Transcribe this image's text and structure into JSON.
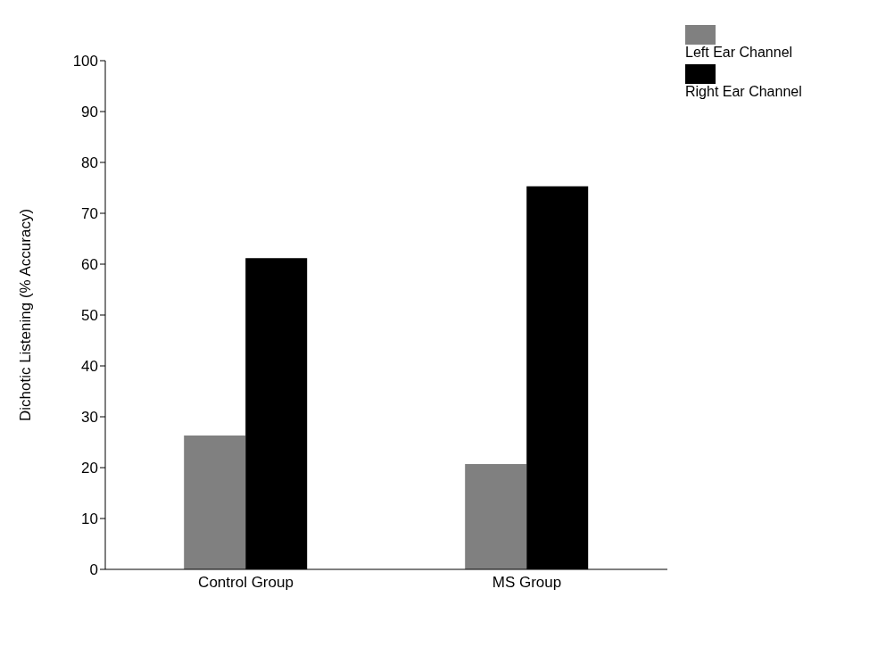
{
  "chart_data": {
    "type": "bar",
    "ylabel": "Dichotic Listening (% Accuracy)",
    "categories": [
      "Control Group",
      "MS Group"
    ],
    "series": [
      {
        "name": "Left Ear Channel",
        "color": "#808080",
        "values": [
          26.3,
          20.7
        ]
      },
      {
        "name": "Right Ear Channel",
        "color": "#000000",
        "values": [
          61.2,
          75.3
        ]
      }
    ],
    "ylim": [
      0,
      100
    ],
    "yticks": [
      0,
      10,
      20,
      30,
      40,
      50,
      60,
      70,
      80,
      90,
      100
    ],
    "grid": false,
    "legend": "top right"
  }
}
